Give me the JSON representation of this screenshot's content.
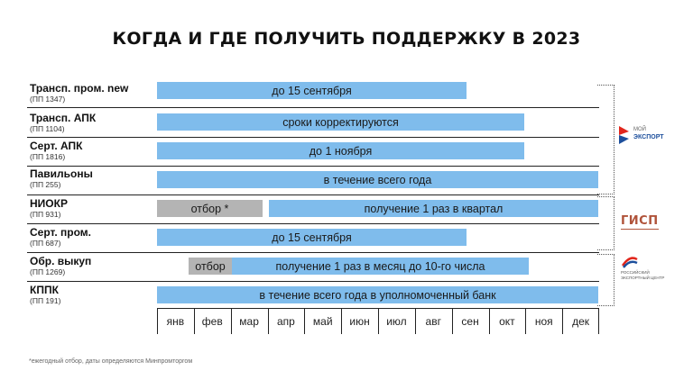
{
  "title": "КОГДА И ГДЕ ПОЛУЧИТЬ ПОДДЕРЖКУ В 2023",
  "rows": [
    {
      "name": "Трансп. пром. new",
      "doc": "(ПП 1347)"
    },
    {
      "name": "Трансп. АПК",
      "doc": "(ПП 1104)"
    },
    {
      "name": "Серт. АПК",
      "doc": "(ПП 1816)"
    },
    {
      "name": "Павильоны",
      "doc": "(ПП 255)"
    },
    {
      "name": "НИОКР",
      "doc": "(ПП 931)"
    },
    {
      "name": "Серт. пром.",
      "doc": "(ПП 687)"
    },
    {
      "name": "Обр. выкуп",
      "doc": "(ПП 1269)"
    },
    {
      "name": "КППК",
      "doc": "(ПП 191)"
    }
  ],
  "bars": {
    "r0": "до 15 сентября",
    "r1": "сроки корректируются",
    "r2": "до 1 ноября",
    "r3": "в течение всего года",
    "r4a": "отбор *",
    "r4b": "получение 1 раз в квартал",
    "r5": "до 15 сентября",
    "r6a": "отбор",
    "r6b": "получение 1 раз в месяц до 10-го числа",
    "r7": "в течение всего года в уполномоченный банк"
  },
  "months": [
    "янв",
    "фев",
    "мар",
    "апр",
    "май",
    "июн",
    "июл",
    "авг",
    "сен",
    "окт",
    "ноя",
    "дек"
  ],
  "logos": {
    "myexport_line1": "МОЙ",
    "myexport_line2": "ЭКСПОРТ",
    "gisp": "ГИСП",
    "rec_line1": "РОССИЙСКИЙ",
    "rec_line2": "ЭКСПОРТНЫЙ ЦЕНТР"
  },
  "colors": {
    "bar": "#7fbcec",
    "selection_bar": "#b4b4b4",
    "gisp": "#b0533a",
    "myexport_red": "#e1261c",
    "myexport_blue": "#1d4f9c"
  },
  "footnote": "*ежегодный отбор, даты определяются Минпромторгом"
}
